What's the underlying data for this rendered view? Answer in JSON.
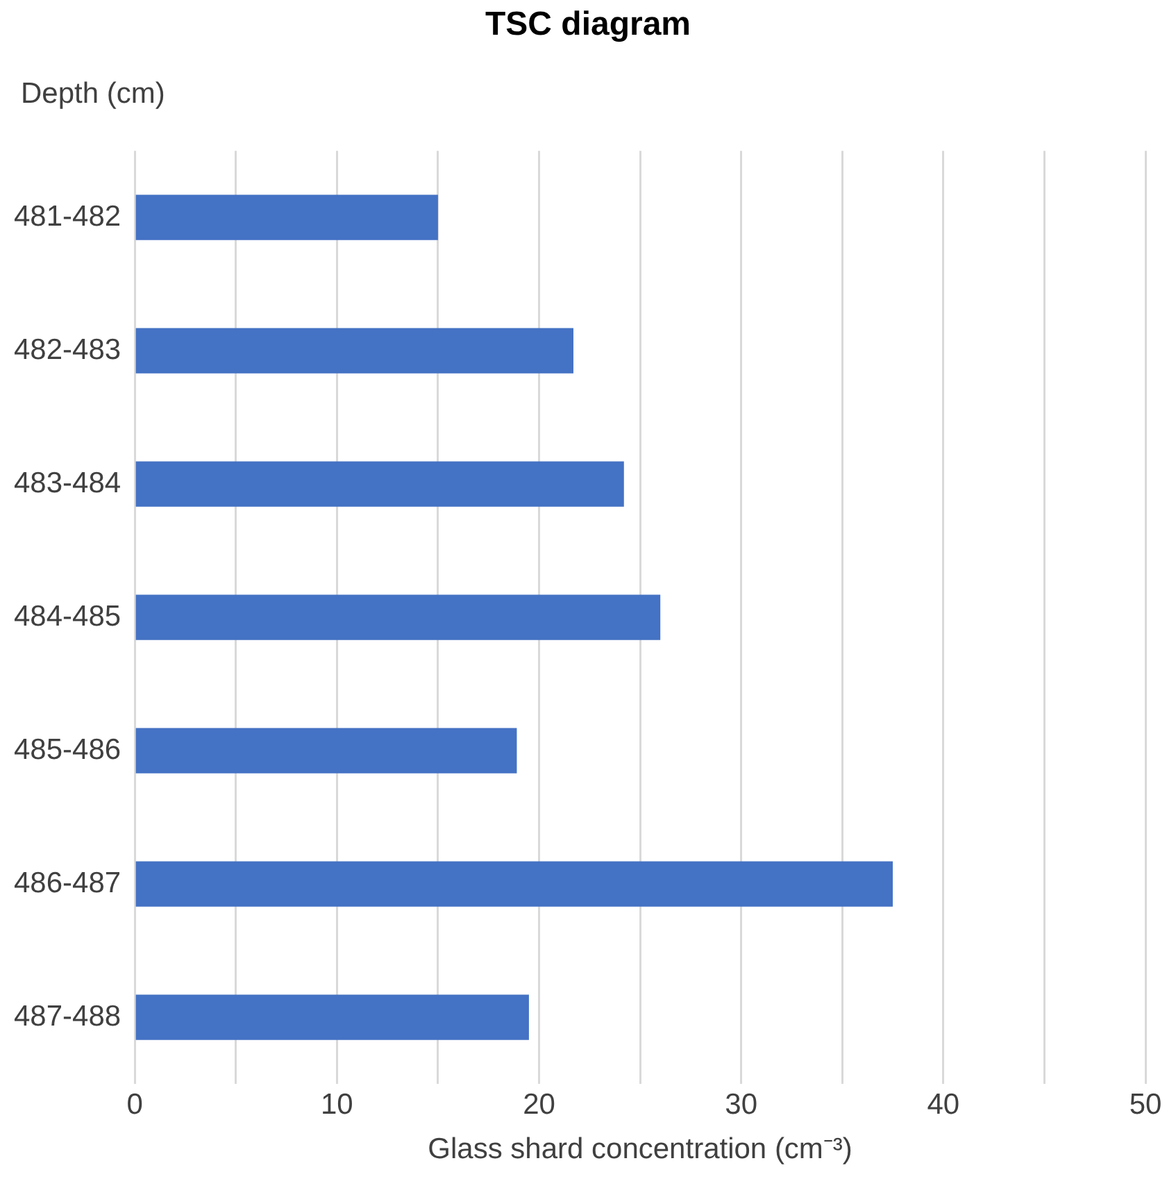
{
  "chart_data": {
    "type": "bar",
    "orientation": "horizontal",
    "title": "TSC diagram",
    "ylabel": "Depth (cm)",
    "xlabel": "Glass shard concentration (cm⁻³)",
    "categories": [
      "481-482",
      "482-483",
      "483-484",
      "484-485",
      "485-486",
      "486-487",
      "487-488"
    ],
    "values": [
      15.0,
      21.7,
      24.2,
      26.0,
      18.9,
      37.5,
      19.5
    ],
    "color": "#4472c4",
    "xlim": [
      0,
      50
    ],
    "xticks": [
      0,
      {
        "value": 5,
        "label": null
      },
      10,
      {
        "value": 15,
        "label": null
      },
      20,
      {
        "value": 25,
        "label": null
      },
      30,
      {
        "value": 35,
        "label": null
      },
      40,
      {
        "value": 45,
        "label": null
      },
      50
    ],
    "grid": "x",
    "legend": false
  }
}
